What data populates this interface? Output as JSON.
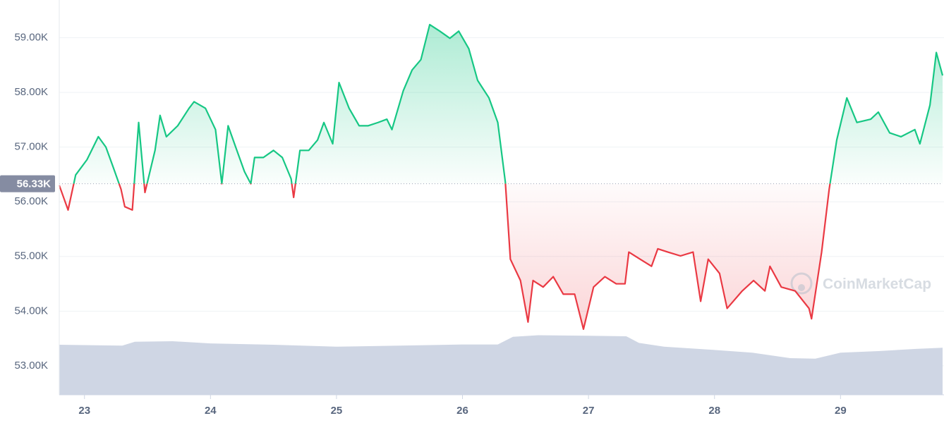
{
  "chart_data": {
    "type": "line",
    "x": [
      22.8,
      22.87,
      22.93,
      23.02,
      23.11,
      23.17,
      23.23,
      23.29,
      23.32,
      23.38,
      23.43,
      23.48,
      23.56,
      23.6,
      23.65,
      23.74,
      23.83,
      23.87,
      23.96,
      24.04,
      24.09,
      24.14,
      24.2,
      24.27,
      24.32,
      24.35,
      24.42,
      24.5,
      24.57,
      24.64,
      24.66,
      24.71,
      24.78,
      24.85,
      24.9,
      24.97,
      25.02,
      25.1,
      25.18,
      25.25,
      25.33,
      25.4,
      25.44,
      25.53,
      25.6,
      25.67,
      25.74,
      25.82,
      25.9,
      25.97,
      26.05,
      26.12,
      26.21,
      26.28,
      26.34,
      26.38,
      26.46,
      26.52,
      26.56,
      26.64,
      26.72,
      26.8,
      26.89,
      26.96,
      27.04,
      27.13,
      27.22,
      27.29,
      27.32,
      27.41,
      27.5,
      27.55,
      27.63,
      27.73,
      27.83,
      27.89,
      27.95,
      28.04,
      28.1,
      28.22,
      28.31,
      28.4,
      28.44,
      28.53,
      28.64,
      28.75,
      28.77,
      28.85,
      28.91,
      28.97,
      29.05,
      29.13,
      29.24,
      29.3,
      29.39,
      29.48,
      29.59,
      29.63,
      29.71,
      29.76,
      29.81
    ],
    "values": [
      56300,
      55850,
      56490,
      56770,
      57190,
      57000,
      56620,
      56230,
      55910,
      55850,
      57450,
      56170,
      56940,
      57580,
      57190,
      57390,
      57710,
      57830,
      57710,
      57320,
      56330,
      57390,
      57000,
      56550,
      56330,
      56810,
      56810,
      56940,
      56810,
      56420,
      56080,
      56940,
      56940,
      57130,
      57450,
      57060,
      58180,
      57710,
      57390,
      57390,
      57450,
      57510,
      57320,
      58030,
      58410,
      58600,
      59240,
      59120,
      58990,
      59120,
      58800,
      58220,
      57900,
      57450,
      56360,
      54950,
      54560,
      53800,
      54560,
      54440,
      54630,
      54310,
      54310,
      53670,
      54440,
      54630,
      54500,
      54500,
      55080,
      54950,
      54820,
      55140,
      55080,
      55010,
      55080,
      54180,
      54950,
      54690,
      54050,
      54370,
      54560,
      54370,
      54820,
      54440,
      54370,
      54050,
      53860,
      55080,
      56230,
      57130,
      57900,
      57450,
      57510,
      57640,
      57260,
      57190,
      57320,
      57060,
      57770,
      58730,
      58310
    ],
    "up_color": "#16c784",
    "down_color": "#ea3943",
    "baseline": {
      "value": 56330,
      "label": "56.33K"
    },
    "volume": {
      "color": "#cfd6e4",
      "x": [
        22.8,
        23.3,
        23.4,
        23.7,
        24.0,
        24.5,
        25.0,
        25.5,
        26.0,
        26.28,
        26.4,
        26.6,
        27.0,
        27.3,
        27.4,
        27.6,
        28.0,
        28.3,
        28.6,
        28.8,
        29.0,
        29.3,
        29.6,
        29.81
      ],
      "values": [
        53385,
        53370,
        53440,
        53450,
        53410,
        53385,
        53350,
        53370,
        53390,
        53390,
        53530,
        53560,
        53550,
        53540,
        53420,
        53350,
        53290,
        53240,
        53140,
        53130,
        53240,
        53270,
        53310,
        53330
      ]
    },
    "xlim": [
      22.8,
      29.81
    ],
    "xticks": [
      23,
      24,
      25,
      26,
      27,
      28,
      29
    ],
    "ylim": [
      52470,
      59690
    ],
    "yticks": [
      {
        "value": 53000,
        "label": "53.00K"
      },
      {
        "value": 54000,
        "label": "54.00K"
      },
      {
        "value": 55000,
        "label": "55.00K"
      },
      {
        "value": 56000,
        "label": "56.00K"
      },
      {
        "value": 57000,
        "label": "57.00K"
      },
      {
        "value": 58000,
        "label": "58.00K"
      },
      {
        "value": 59000,
        "label": "59.00K"
      }
    ],
    "grid": true,
    "watermark": "CoinMarketCap"
  }
}
